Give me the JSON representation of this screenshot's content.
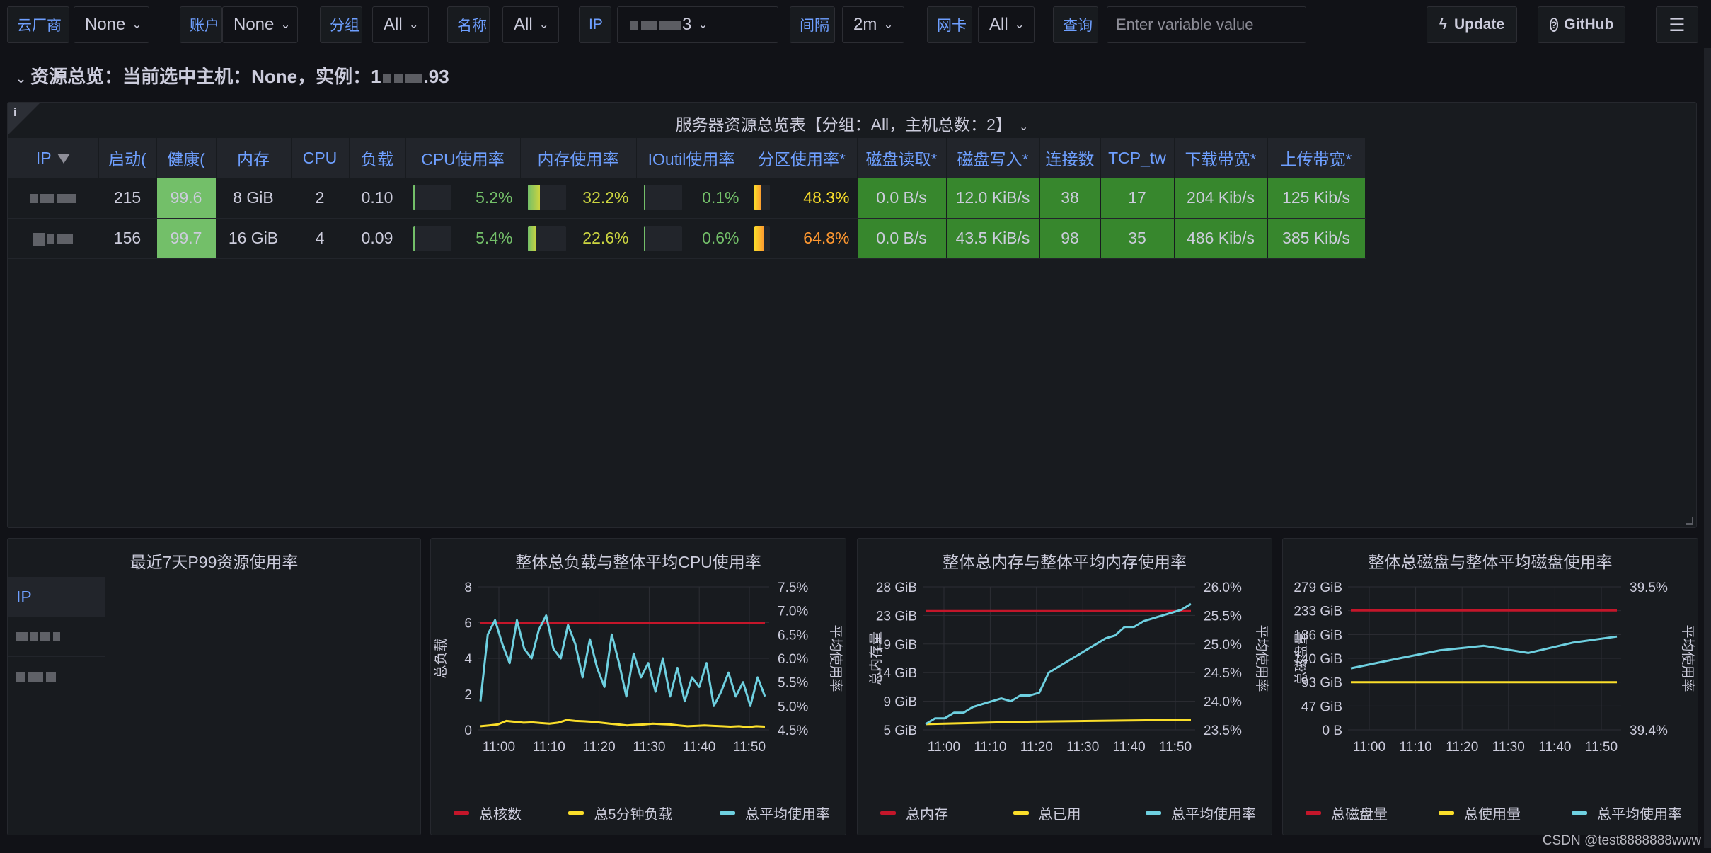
{
  "toolbar": {
    "vars": [
      {
        "label": "云厂商",
        "value": "None"
      },
      {
        "label": "账户",
        "value": "None"
      },
      {
        "label": "分组",
        "value": "All"
      },
      {
        "label": "名称",
        "value": "All"
      },
      {
        "label": "IP",
        "value": "3"
      },
      {
        "label": "间隔",
        "value": "2m"
      },
      {
        "label": "网卡",
        "value": "All"
      }
    ],
    "query_label": "查询",
    "query_placeholder": "Enter variable value",
    "update_label": "Update",
    "github_label": "GitHub"
  },
  "row": {
    "title_pre": "资源总览：当前选中主机：None，实例：1",
    "title_post": ".93"
  },
  "table_panel": {
    "title": "服务器资源总览表【分组：All，主机总数：2】",
    "columns": [
      "IP",
      "启动(",
      "健康(",
      "内存",
      "CPU",
      "负载",
      "CPU使用率",
      "内存使用率",
      "IOutil使用率",
      "分区使用率*",
      "磁盘读取*",
      "磁盘写入*",
      "连接数",
      "TCP_tw",
      "下载带宽*",
      "上传带宽*"
    ],
    "rows": [
      {
        "uptime": "215",
        "health": "99.6",
        "mem": "8 GiB",
        "cpu": "2",
        "load": "0.10",
        "cpu_pct": "5.2%",
        "cpu_frac": 0.052,
        "mem_pct": "32.2%",
        "mem_frac": 0.322,
        "io_pct": "0.1%",
        "io_frac": 0.001,
        "part_pct": "48.3%",
        "part_frac": 0.483,
        "disk_read": "0.0 B/s",
        "disk_write": "12.0 KiB/s",
        "conn": "38",
        "tcp_tw": "17",
        "down": "204 Kib/s",
        "up": "125 Kib/s"
      },
      {
        "uptime": "156",
        "health": "99.7",
        "mem": "16 GiB",
        "cpu": "4",
        "load": "0.09",
        "cpu_pct": "5.4%",
        "cpu_frac": 0.054,
        "mem_pct": "22.6%",
        "mem_frac": 0.226,
        "io_pct": "0.6%",
        "io_frac": 0.006,
        "part_pct": "64.8%",
        "part_frac": 0.648,
        "disk_read": "0.0 B/s",
        "disk_write": "43.5 KiB/s",
        "conn": "98",
        "tcp_tw": "35",
        "down": "486 Kib/s",
        "up": "385 Kib/s"
      }
    ]
  },
  "p99_panel": {
    "title": "最近7天P99资源使用率",
    "col_header": "IP"
  },
  "chart_data": [
    {
      "type": "line",
      "title": "整体总负载与整体平均CPU使用率",
      "xlabel": "",
      "ylabel": "总负载",
      "ylabel_right": "平均使用率",
      "x_ticks": [
        "11:00",
        "11:10",
        "11:20",
        "11:30",
        "11:40",
        "11:50"
      ],
      "x_range": [
        "10:56",
        "11:57"
      ],
      "ylim": [
        0,
        8
      ],
      "y_ticks": [
        "0",
        "2",
        "4",
        "6",
        "8"
      ],
      "ylim_right": [
        4.5,
        7.5
      ],
      "y_ticks_right": [
        "4.5%",
        "5.0%",
        "5.5%",
        "6.0%",
        "6.5%",
        "7.0%",
        "7.5%"
      ],
      "grid": true,
      "legend_position": "bottom",
      "series": [
        {
          "name": "总核数",
          "axis": "left",
          "color": "#c4162a",
          "values": [
            6,
            6
          ]
        },
        {
          "name": "总5分钟负载",
          "axis": "left",
          "color": "#fade2a",
          "values": [
            0.2,
            0.25,
            0.3,
            0.5,
            0.45,
            0.4,
            0.42,
            0.38,
            0.35,
            0.4,
            0.55,
            0.5,
            0.48,
            0.45,
            0.4,
            0.35,
            0.3,
            0.25,
            0.28,
            0.3,
            0.35,
            0.32,
            0.3,
            0.25,
            0.2,
            0.22,
            0.25,
            0.22,
            0.2,
            0.18,
            0.2,
            0.15,
            0.2,
            0.18
          ]
        },
        {
          "name": "总平均使用率",
          "axis": "right",
          "color": "#6ed0e0",
          "values": [
            5.1,
            6.5,
            6.8,
            6.3,
            5.9,
            6.8,
            6.2,
            6.0,
            6.6,
            6.9,
            6.2,
            6.0,
            6.7,
            6.3,
            5.6,
            6.4,
            5.8,
            5.4,
            6.5,
            5.9,
            5.2,
            6.1,
            5.6,
            5.9,
            5.3,
            6.0,
            5.2,
            5.8,
            5.1,
            5.6,
            5.4,
            5.9,
            5.0,
            5.3,
            5.7,
            5.2,
            5.5,
            5.0,
            5.6,
            5.2
          ]
        }
      ]
    },
    {
      "type": "line",
      "title": "整体总内存与整体平均内存使用率",
      "xlabel": "",
      "ylabel": "总内存量",
      "ylabel_right": "平均使用率",
      "x_ticks": [
        "11:00",
        "11:10",
        "11:20",
        "11:30",
        "11:40",
        "11:50"
      ],
      "x_range": [
        "10:56",
        "11:57"
      ],
      "y_ticks": [
        "5 GiB",
        "9 GiB",
        "14 GiB",
        "19 GiB",
        "23 GiB",
        "28 GiB"
      ],
      "ylim": [
        4.66,
        27.96
      ],
      "ylim_right": [
        23.5,
        26.0
      ],
      "y_ticks_right": [
        "23.5%",
        "24.0%",
        "24.5%",
        "25.0%",
        "25.5%",
        "26.0%"
      ],
      "grid": true,
      "legend_position": "bottom",
      "series": [
        {
          "name": "总内存",
          "axis": "left",
          "color": "#c4162a",
          "values": [
            24,
            24
          ]
        },
        {
          "name": "总已用",
          "axis": "left",
          "color": "#fade2a",
          "values": [
            5.6,
            5.8,
            6.0,
            6.1,
            6.2,
            6.3
          ]
        },
        {
          "name": "总平均使用率",
          "axis": "right",
          "color": "#6ed0e0",
          "values": [
            23.6,
            23.7,
            23.7,
            23.8,
            23.8,
            23.9,
            23.95,
            24.0,
            24.05,
            24.0,
            24.1,
            24.1,
            24.15,
            24.5,
            24.6,
            24.7,
            24.8,
            24.9,
            25.0,
            25.1,
            25.15,
            25.3,
            25.3,
            25.4,
            25.45,
            25.5,
            25.55,
            25.6,
            25.7
          ]
        }
      ]
    },
    {
      "type": "line",
      "title": "整体总磁盘与整体平均磁盘使用率",
      "xlabel": "",
      "ylabel": "总磁盘量",
      "ylabel_right": "平均使用率",
      "x_ticks": [
        "11:00",
        "11:10",
        "11:20",
        "11:30",
        "11:40",
        "11:50"
      ],
      "x_range": [
        "10:56",
        "11:57"
      ],
      "y_ticks": [
        "0 B",
        "47 GiB",
        "93 GiB",
        "140 GiB",
        "186 GiB",
        "233 GiB",
        "279 GiB"
      ],
      "ylim": [
        0,
        279
      ],
      "y_ticks_right": [
        "39.4%",
        "39.5%"
      ],
      "grid": true,
      "legend_position": "bottom",
      "series": [
        {
          "name": "总磁盘量",
          "axis": "left",
          "color": "#c4162a",
          "values": [
            233,
            233
          ]
        },
        {
          "name": "总使用量",
          "axis": "left",
          "color": "#fade2a",
          "values": [
            93,
            93
          ]
        },
        {
          "name": "总平均使用率",
          "axis": "left",
          "color": "#6ed0e0",
          "values": [
            120,
            138,
            155,
            164,
            150,
            170,
            182
          ]
        }
      ]
    }
  ],
  "watermark": "CSDN @test8888888www"
}
